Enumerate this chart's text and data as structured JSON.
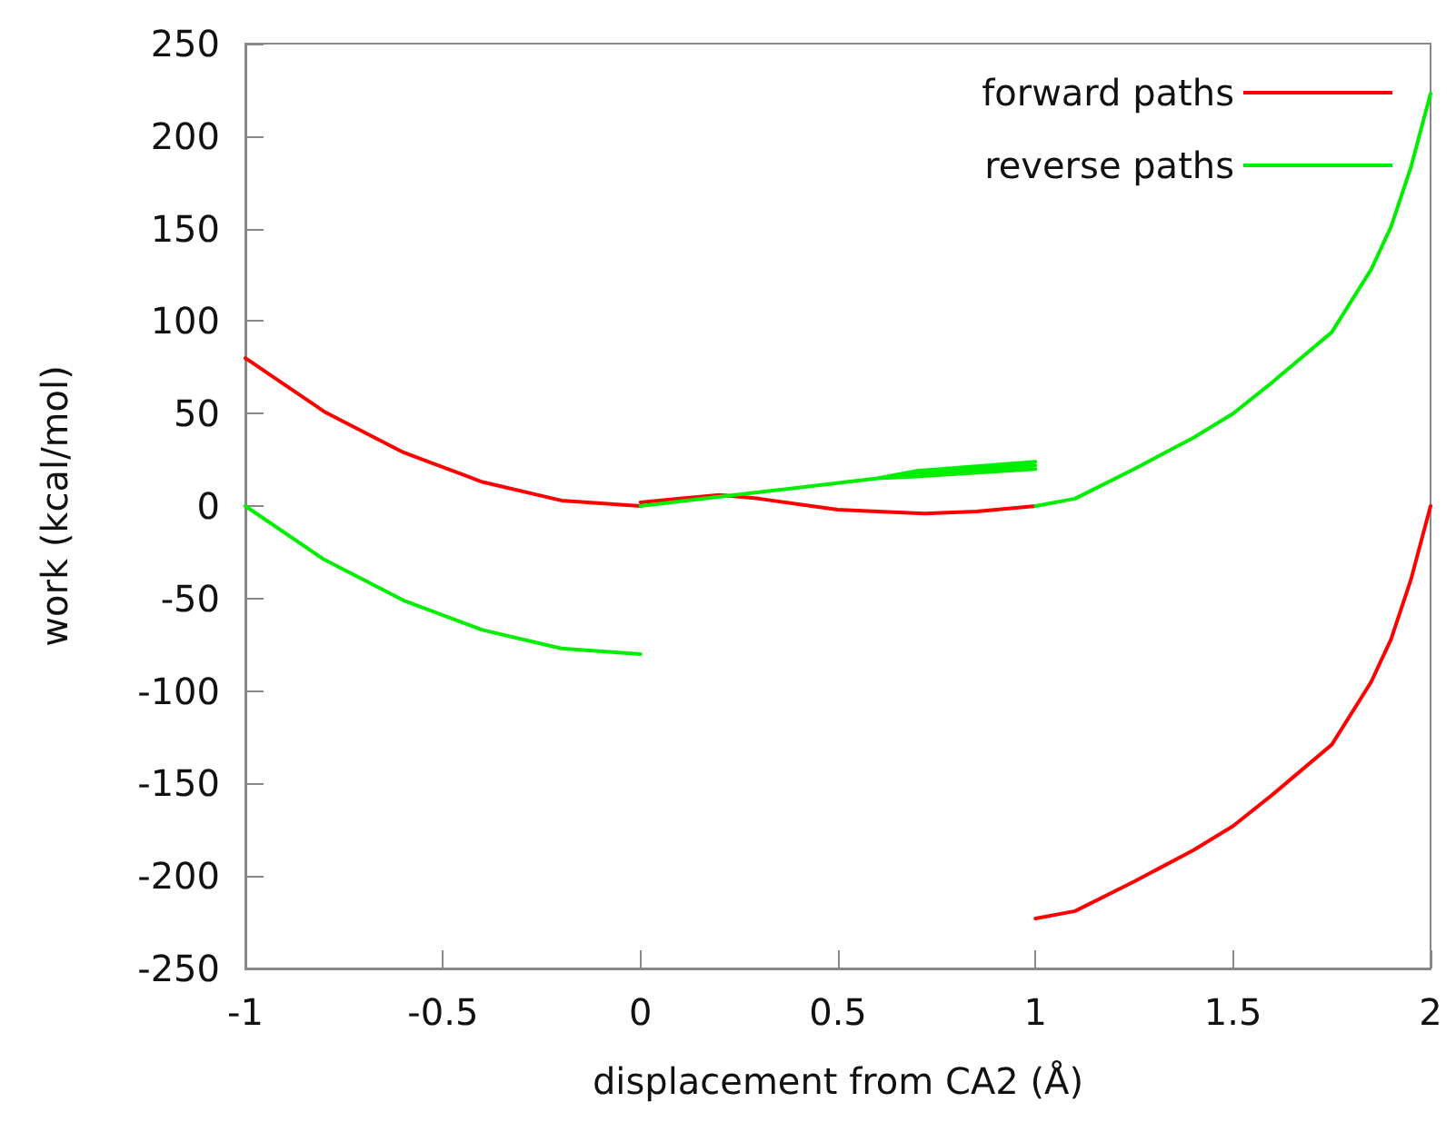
{
  "chart_data": {
    "type": "line",
    "xlabel": "displacement from CA2 (Å)",
    "ylabel": "work (kcal/mol)",
    "xlim": [
      -1,
      2
    ],
    "xticks": [
      -1,
      -0.5,
      0,
      0.5,
      1,
      1.5,
      2
    ],
    "ylim": [
      -250,
      250
    ],
    "yticks": [
      -250,
      -200,
      -150,
      -100,
      -50,
      0,
      50,
      100,
      150,
      200,
      250
    ],
    "legend": "top right",
    "marker": "none",
    "line_style": "solid",
    "series": [
      {
        "name": "forward paths",
        "color": "#ff0000",
        "x": [
          -1,
          -0.8,
          -0.6,
          -0.4,
          -0.2,
          0,
          null,
          0,
          0.1,
          0.2,
          0.3,
          0.4,
          0.5,
          0.6,
          0.72,
          0.85,
          1,
          null,
          1,
          1.1,
          1.25,
          1.4,
          1.5,
          1.6,
          1.75,
          1.85,
          1.9,
          1.95,
          2
        ],
        "values": [
          80,
          51,
          29,
          13,
          3,
          0,
          null,
          2,
          4,
          6,
          4,
          1,
          -2,
          -3,
          -4,
          -3,
          0,
          null,
          -223,
          -219,
          -203,
          -186,
          -173,
          -156,
          -129,
          -95,
          -72,
          -40,
          0
        ]
      },
      {
        "name": "reverse paths",
        "color": "#00ee00",
        "x": [
          -1,
          -0.8,
          -0.6,
          -0.4,
          -0.2,
          0,
          null,
          0,
          0.2,
          0.4,
          0.6,
          0.7,
          1,
          null,
          0,
          0.2,
          0.4,
          0.6,
          0.7,
          1,
          null,
          0,
          0.2,
          0.4,
          0.6,
          0.7,
          1,
          null,
          1,
          1.1,
          1.25,
          1.4,
          1.5,
          1.6,
          1.75,
          1.85,
          1.9,
          1.95,
          2
        ],
        "values": [
          0,
          -29,
          -51,
          -67,
          -77,
          -80,
          null,
          0,
          5,
          10,
          15,
          16,
          20,
          null,
          0,
          5,
          10,
          15,
          18,
          22,
          null,
          0,
          5,
          10,
          15,
          19,
          24,
          null,
          0,
          4,
          20,
          37,
          50,
          67,
          94,
          128,
          151,
          183,
          223
        ]
      }
    ]
  }
}
